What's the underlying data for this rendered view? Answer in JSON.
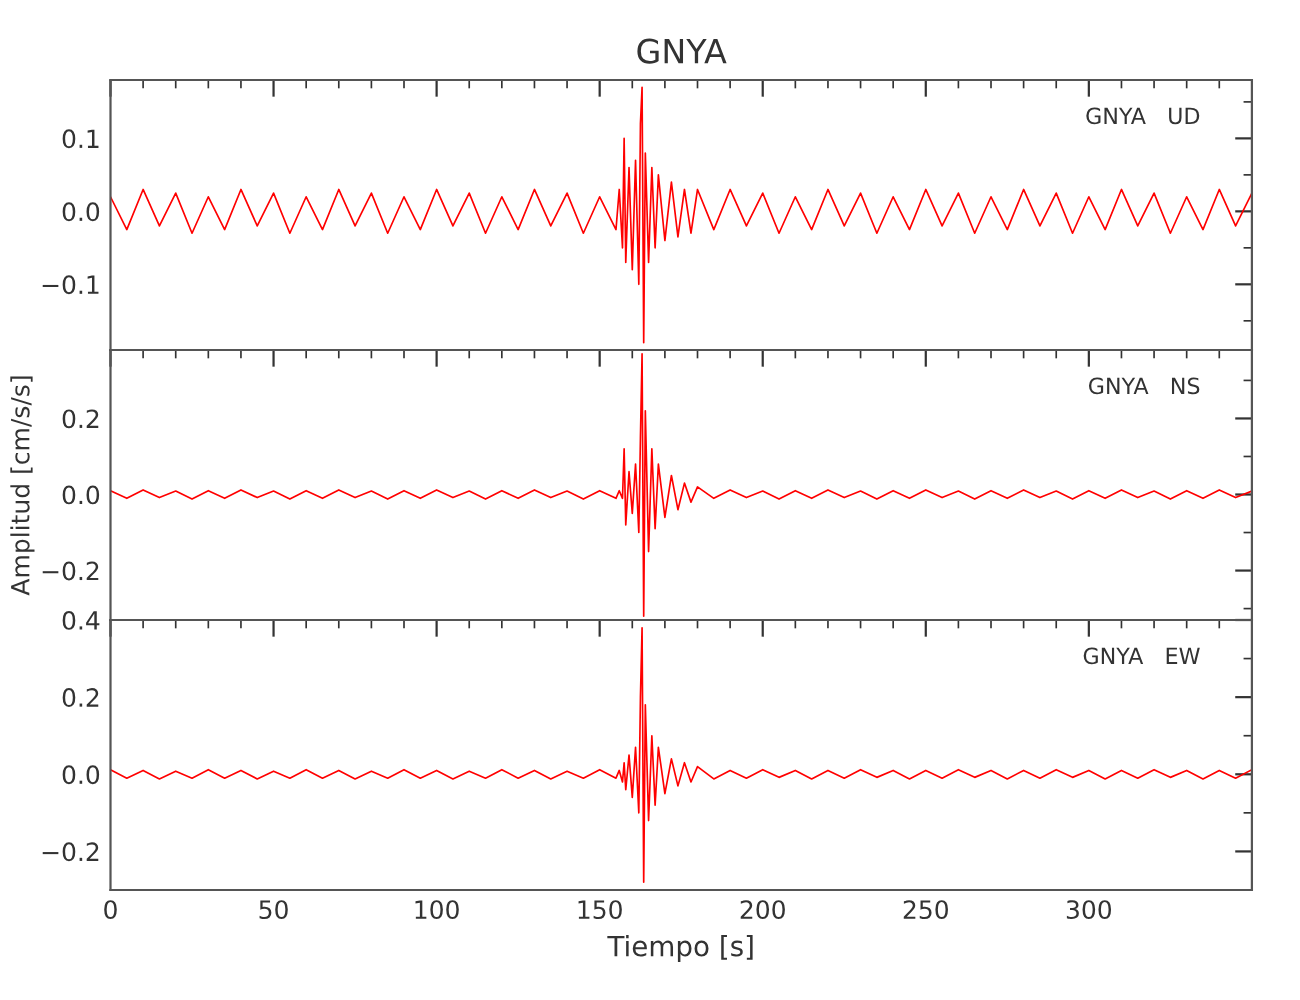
{
  "chart_data": [
    {
      "type": "line",
      "title": "GNYA",
      "annotations": [
        "GNYA   UD"
      ],
      "tick_labels": "y",
      "x": [
        0,
        5,
        10,
        15,
        20,
        25,
        30,
        35,
        40,
        45,
        50,
        55,
        60,
        65,
        70,
        75,
        80,
        85,
        90,
        95,
        100,
        105,
        110,
        115,
        120,
        125,
        130,
        135,
        140,
        145,
        150,
        155,
        156,
        157,
        157.5,
        158,
        159,
        160,
        161,
        162,
        162.5,
        163,
        163.5,
        164,
        165,
        166,
        167,
        168,
        170,
        172,
        174,
        176,
        178,
        180,
        185,
        190,
        195,
        200,
        205,
        210,
        215,
        220,
        225,
        230,
        235,
        240,
        245,
        250,
        255,
        260,
        265,
        270,
        275,
        280,
        285,
        290,
        295,
        300,
        305,
        310,
        315,
        320,
        325,
        330,
        335,
        340,
        345,
        350
      ],
      "series": [
        {
          "color": "#ff0000",
          "values": [
            0.02,
            -0.025,
            0.03,
            -0.02,
            0.025,
            -0.03,
            0.02,
            -0.025,
            0.03,
            -0.02,
            0.025,
            -0.03,
            0.02,
            -0.025,
            0.03,
            -0.02,
            0.025,
            -0.03,
            0.02,
            -0.025,
            0.03,
            -0.02,
            0.025,
            -0.03,
            0.02,
            -0.025,
            0.03,
            -0.02,
            0.025,
            -0.03,
            0.02,
            -0.025,
            0.03,
            -0.05,
            0.1,
            -0.07,
            0.06,
            -0.08,
            0.07,
            -0.1,
            0.12,
            0.17,
            -0.18,
            0.08,
            -0.07,
            0.06,
            -0.05,
            0.05,
            -0.04,
            0.04,
            -0.035,
            0.03,
            -0.03,
            0.03,
            -0.025,
            0.03,
            -0.02,
            0.025,
            -0.03,
            0.02,
            -0.025,
            0.03,
            -0.02,
            0.025,
            -0.03,
            0.02,
            -0.025,
            0.03,
            -0.02,
            0.025,
            -0.03,
            0.02,
            -0.025,
            0.03,
            -0.02,
            0.025,
            -0.03,
            0.02,
            -0.025,
            0.03,
            -0.02,
            0.025,
            -0.03,
            0.02,
            -0.025,
            0.03,
            -0.02,
            0.025
          ]
        }
      ],
      "xlim": [
        0,
        350
      ],
      "xticks": [
        0,
        50,
        100,
        150,
        200,
        250,
        300
      ],
      "ylim": [
        -0.19,
        0.18
      ],
      "yticks": [
        {
          "value": -0.1,
          "label": "−0.1"
        },
        {
          "value": 0,
          "label": "0.0"
        },
        0.1
      ]
    },
    {
      "type": "line",
      "ylabel": "Amplitud [cm/s/s]",
      "annotations": [
        "GNYA   NS"
      ],
      "tick_labels": "y",
      "x": [
        0,
        5,
        10,
        15,
        20,
        25,
        30,
        35,
        40,
        45,
        50,
        55,
        60,
        65,
        70,
        75,
        80,
        85,
        90,
        95,
        100,
        105,
        110,
        115,
        120,
        125,
        130,
        135,
        140,
        145,
        150,
        155,
        156,
        157,
        157.5,
        158,
        159,
        160,
        161,
        162,
        162.5,
        163,
        163.5,
        164,
        165,
        166,
        167,
        168,
        170,
        172,
        174,
        176,
        178,
        180,
        185,
        190,
        195,
        200,
        205,
        210,
        215,
        220,
        225,
        230,
        235,
        240,
        245,
        250,
        255,
        260,
        265,
        270,
        275,
        280,
        285,
        290,
        295,
        300,
        305,
        310,
        315,
        320,
        325,
        330,
        335,
        340,
        345,
        350
      ],
      "series": [
        {
          "color": "#ff0000",
          "values": [
            0.01,
            -0.01,
            0.012,
            -0.008,
            0.009,
            -0.012,
            0.01,
            -0.01,
            0.012,
            -0.008,
            0.009,
            -0.012,
            0.01,
            -0.01,
            0.012,
            -0.008,
            0.009,
            -0.012,
            0.01,
            -0.01,
            0.012,
            -0.008,
            0.009,
            -0.012,
            0.01,
            -0.01,
            0.012,
            -0.008,
            0.009,
            -0.012,
            0.01,
            -0.01,
            0.01,
            -0.01,
            0.12,
            -0.08,
            0.06,
            -0.05,
            0.08,
            -0.1,
            0.15,
            0.37,
            -0.32,
            0.22,
            -0.15,
            0.12,
            -0.09,
            0.08,
            -0.06,
            0.05,
            -0.04,
            0.03,
            -0.02,
            0.02,
            -0.01,
            0.012,
            -0.008,
            0.009,
            -0.012,
            0.01,
            -0.01,
            0.012,
            -0.008,
            0.009,
            -0.012,
            0.01,
            -0.01,
            0.012,
            -0.008,
            0.009,
            -0.012,
            0.01,
            -0.01,
            0.012,
            -0.008,
            0.009,
            -0.012,
            0.01,
            -0.01,
            0.012,
            -0.008,
            0.009,
            -0.012,
            0.01,
            -0.01,
            0.012,
            -0.008,
            0.009
          ]
        }
      ],
      "xlim": [
        0,
        350
      ],
      "xticks": [
        0,
        50,
        100,
        150,
        200,
        250,
        300
      ],
      "ylim": [
        -0.33,
        0.38
      ],
      "yticks": [
        {
          "value": -0.2,
          "label": "−0.2"
        },
        {
          "value": 0,
          "label": "0.0"
        },
        0.2
      ]
    },
    {
      "type": "line",
      "xlabel": "Tiempo [s]",
      "annotations": [
        "GNYA   EW"
      ],
      "x": [
        0,
        5,
        10,
        15,
        20,
        25,
        30,
        35,
        40,
        45,
        50,
        55,
        60,
        65,
        70,
        75,
        80,
        85,
        90,
        95,
        100,
        105,
        110,
        115,
        120,
        125,
        130,
        135,
        140,
        145,
        150,
        155,
        156,
        157,
        157.5,
        158,
        159,
        160,
        161,
        162,
        162.5,
        163,
        163.5,
        164,
        165,
        166,
        167,
        168,
        170,
        172,
        174,
        176,
        178,
        180,
        185,
        190,
        195,
        200,
        205,
        210,
        215,
        220,
        225,
        230,
        235,
        240,
        245,
        250,
        255,
        260,
        265,
        270,
        275,
        280,
        285,
        290,
        295,
        300,
        305,
        310,
        315,
        320,
        325,
        330,
        335,
        340,
        345,
        350
      ],
      "series": [
        {
          "color": "#ff0000",
          "values": [
            0.012,
            -0.01,
            0.01,
            -0.012,
            0.008,
            -0.01,
            0.012,
            -0.01,
            0.01,
            -0.012,
            0.008,
            -0.01,
            0.012,
            -0.01,
            0.01,
            -0.012,
            0.008,
            -0.01,
            0.012,
            -0.01,
            0.01,
            -0.012,
            0.008,
            -0.01,
            0.012,
            -0.01,
            0.01,
            -0.012,
            0.008,
            -0.01,
            0.012,
            -0.01,
            0.01,
            -0.02,
            0.03,
            -0.04,
            0.05,
            -0.06,
            0.07,
            -0.1,
            0.2,
            0.38,
            -0.28,
            0.18,
            -0.12,
            0.1,
            -0.08,
            0.07,
            -0.05,
            0.04,
            -0.03,
            0.03,
            -0.02,
            0.02,
            -0.012,
            0.01,
            -0.01,
            0.012,
            -0.008,
            0.01,
            -0.012,
            0.01,
            -0.01,
            0.012,
            -0.008,
            0.01,
            -0.012,
            0.01,
            -0.01,
            0.012,
            -0.008,
            0.01,
            -0.012,
            0.01,
            -0.01,
            0.012,
            -0.008,
            0.01,
            -0.012,
            0.01,
            -0.01,
            0.012,
            -0.008,
            0.01,
            -0.012,
            0.01,
            -0.01,
            0.012
          ]
        }
      ],
      "xlim": [
        0,
        350
      ],
      "xticks": [
        0,
        50,
        100,
        150,
        200,
        250,
        300
      ],
      "ylim": [
        -0.3,
        0.4
      ],
      "yticks": [
        {
          "value": -0.2,
          "label": "−0.2"
        },
        {
          "value": 0,
          "label": "0.0"
        },
        0.2,
        0.4
      ]
    }
  ]
}
